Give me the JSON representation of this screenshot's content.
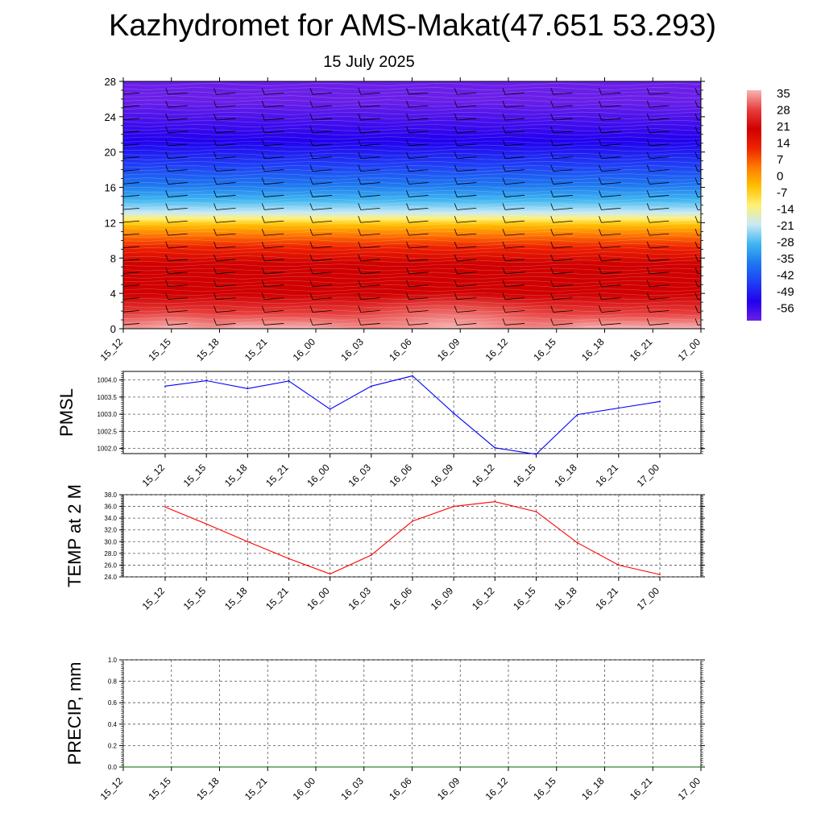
{
  "title": "Kazhydromet for AMS-Makat(47.651 53.293)",
  "subtitle": "15 July 2025",
  "colors": {
    "temperature_scale_hot_to_cold": [
      "#f5b5b5",
      "#e8403d",
      "#d00000",
      "#ee2200",
      "#ff7a00",
      "#ffc000",
      "#fff176",
      "#c9e9f6",
      "#3fb6f0",
      "#1e78f0",
      "#1f3ff5",
      "#2200ee",
      "#6a1fe8"
    ],
    "pmsl_line": "#0000ff",
    "temp_line": "#ff0000",
    "precip_line": "#006400"
  },
  "chart_data": [
    {
      "type": "heatmap",
      "title": "",
      "y_ticks": [
        0,
        4,
        8,
        12,
        16,
        20,
        24,
        28
      ],
      "ylim": [
        0,
        28
      ],
      "x_ticks": [
        "15_12",
        "15_15",
        "15_18",
        "15_21",
        "16_00",
        "16_03",
        "16_06",
        "16_09",
        "16_12",
        "16_15",
        "16_18",
        "16_21",
        "17_00"
      ],
      "colorbar_ticks": [
        "35",
        "28",
        "21",
        "14",
        "7",
        "0",
        "-7",
        "-14",
        "-21",
        "-28",
        "-35",
        "-42",
        "-49",
        "-56"
      ],
      "colorbar_range": [
        -63,
        40
      ],
      "wind_barbs": true
    },
    {
      "type": "line",
      "ylabel": "PMSL",
      "x": [
        "15_12",
        "15_15",
        "15_18",
        "15_21",
        "16_00",
        "16_03",
        "16_06",
        "16_09",
        "16_12",
        "16_15",
        "16_18",
        "16_21",
        "17_00"
      ],
      "y_ticks": [
        "1002.0",
        "1002.5",
        "1003.0",
        "1003.5",
        "1004.0"
      ],
      "ylim": [
        1001.85,
        1004.25
      ],
      "values": [
        1003.82,
        1003.98,
        1003.75,
        1003.97,
        1003.15,
        1003.82,
        1004.12,
        1003.03,
        1002.02,
        1001.83,
        1002.99,
        1003.18,
        1003.37
      ],
      "grid": true
    },
    {
      "type": "line",
      "ylabel": "TEMP at 2 M",
      "x": [
        "15_12",
        "15_15",
        "15_18",
        "15_21",
        "16_00",
        "16_03",
        "16_06",
        "16_09",
        "16_12",
        "16_15",
        "16_18",
        "16_21",
        "17_00"
      ],
      "y_ticks": [
        "24.0",
        "26.0",
        "28.0",
        "30.0",
        "32.0",
        "34.0",
        "36.0",
        "38.0"
      ],
      "ylim": [
        24,
        38
      ],
      "values": [
        35.9,
        33.0,
        30.0,
        27.1,
        24.5,
        27.7,
        33.5,
        36.0,
        36.8,
        35.1,
        29.8,
        26.0,
        24.4
      ],
      "grid": true
    },
    {
      "type": "line",
      "ylabel": "PRECIP, mm",
      "x": [
        "15_12",
        "15_15",
        "15_18",
        "15_21",
        "16_00",
        "16_03",
        "16_06",
        "16_09",
        "16_12",
        "16_15",
        "16_18",
        "16_21",
        "17_00"
      ],
      "y_ticks": [
        "0.0",
        "0.2",
        "0.4",
        "0.6",
        "0.8",
        "1.0"
      ],
      "ylim": [
        0,
        1
      ],
      "values": [
        0,
        0,
        0,
        0,
        0,
        0,
        0,
        0,
        0,
        0,
        0,
        0,
        0
      ],
      "grid": true
    }
  ]
}
